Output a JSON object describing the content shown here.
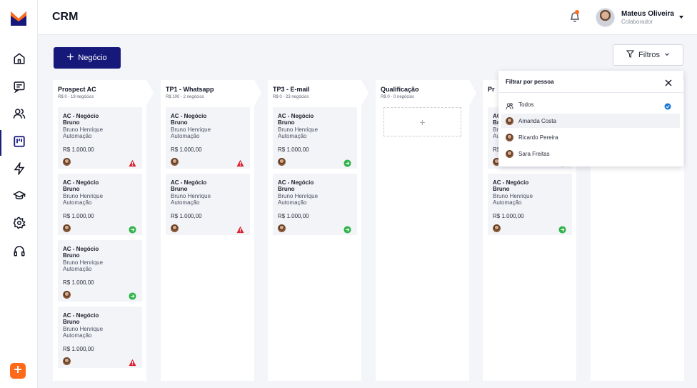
{
  "header": {
    "title": "CRM",
    "user": {
      "name": "Mateus Oliveira",
      "role": "Colaborador"
    }
  },
  "toolbar": {
    "new_button": "Negócio",
    "filter_button": "Filtros"
  },
  "colors": {
    "primary": "#17197a",
    "accent": "#ff6a1a",
    "warning": "#d9242e",
    "success": "#2fb34a",
    "check": "#1a77d6"
  },
  "sidebar": {
    "items": [
      {
        "icon": "home-icon"
      },
      {
        "icon": "chat-icon"
      },
      {
        "icon": "users-icon"
      },
      {
        "icon": "kanban-icon",
        "active": true
      },
      {
        "icon": "bolt-icon"
      },
      {
        "icon": "graduation-cap-icon"
      },
      {
        "icon": "gear-icon"
      },
      {
        "icon": "headphones-icon"
      }
    ]
  },
  "columns": [
    {
      "title": "Prospect AC",
      "subtitle": "R$ 0 - 19 negócios",
      "cards": [
        {
          "line1": "AC - Negócio",
          "line2": "Bruno",
          "line3": "Bruno Henrique",
          "line4": "Automação",
          "value": "R$ 1.000,00",
          "status": "warning"
        },
        {
          "line1": "AC - Negócio",
          "line2": "Bruno",
          "line3": "Bruno Henrique",
          "line4": "Automação",
          "value": "R$ 1.000,00",
          "status": "success"
        },
        {
          "line1": "AC - Negócio",
          "line2": "Bruno",
          "line3": "Bruno Henrique",
          "line4": "Automação",
          "value": "R$ 1.000,00",
          "status": "success"
        },
        {
          "line1": "AC - Negócio",
          "line2": "Bruno",
          "line3": "Bruno Henrique",
          "line4": "Automação",
          "value": "R$ 1.000,00",
          "status": "warning"
        }
      ]
    },
    {
      "title": "TP1 - Whatsapp",
      "subtitle": "R$ 100 - 2 negócios",
      "cards": [
        {
          "line1": "AC - Negócio",
          "line2": "Bruno",
          "line3": "Bruno Henrique",
          "line4": "Automação",
          "value": "R$ 1.000,00",
          "status": "warning"
        },
        {
          "line1": "AC - Negócio",
          "line2": "Bruno",
          "line3": "Bruno Henrique",
          "line4": "Automação",
          "value": "R$ 1.000,00",
          "status": "warning"
        }
      ]
    },
    {
      "title": "TP3 - E-mail",
      "subtitle": "R$ 0 - 23 negócios",
      "cards": [
        {
          "line1": "AC - Negócio",
          "line2": "Bruno",
          "line3": "Bruno Henrique",
          "line4": "Automação",
          "value": "R$ 1.000,00",
          "status": "success"
        },
        {
          "line1": "AC - Negócio",
          "line2": "Bruno",
          "line3": "Bruno Henrique",
          "line4": "Automação",
          "value": "R$ 1.000,00",
          "status": "success"
        }
      ]
    },
    {
      "title": "Qualificação",
      "subtitle": "R$ 0 - 0 negócios",
      "cards": []
    },
    {
      "title": "Pr",
      "subtitle": "",
      "cards": [
        {
          "line1": "AC - Negócio",
          "line2": "Bruno",
          "line3": "Bruno Henrique",
          "line4": "Automação",
          "value": "R$ 1.000,00",
          "status": "success"
        },
        {
          "line1": "AC - Negócio",
          "line2": "Bruno",
          "line3": "Bruno Henrique",
          "line4": "Automação",
          "value": "R$ 1.000,00",
          "status": "success"
        }
      ]
    },
    {
      "title": "",
      "subtitle": "",
      "cards": []
    }
  ],
  "filter_dropdown": {
    "title": "Filtrar por pessoa",
    "options": [
      {
        "label": "Todos",
        "selected": true
      },
      {
        "label": "Amanda Costa",
        "highlighted": true
      },
      {
        "label": "Ricardo Pereira"
      },
      {
        "label": "Sara Freitas"
      }
    ]
  }
}
